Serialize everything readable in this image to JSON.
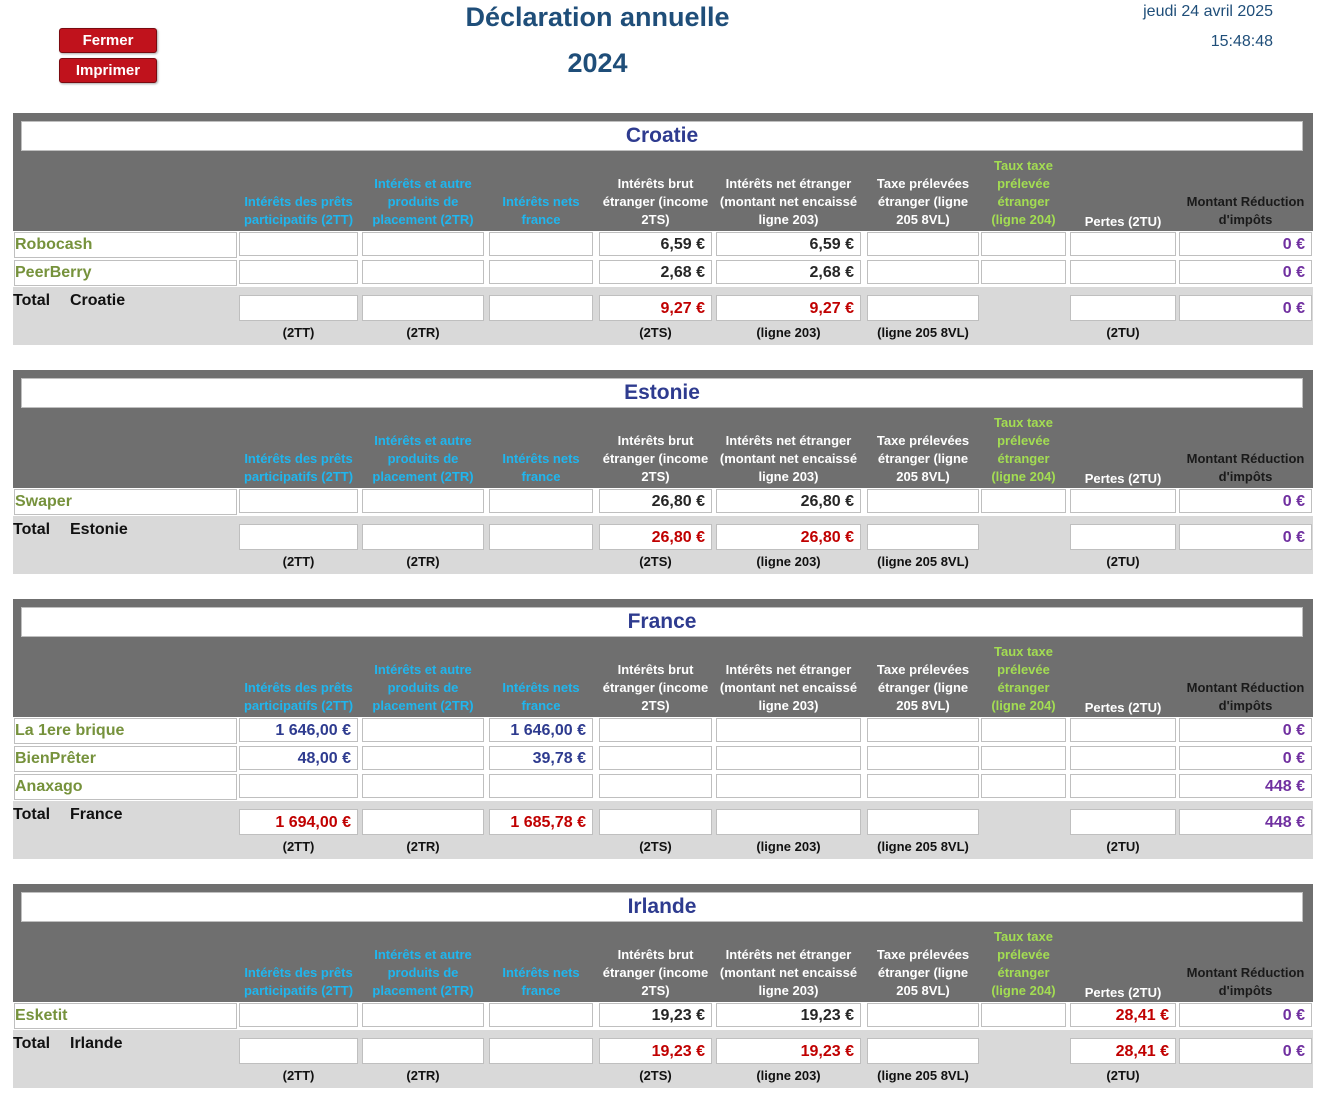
{
  "buttons": {
    "close": "Fermer",
    "print": "Imprimer"
  },
  "title": {
    "line1": "Déclaration  annuelle",
    "line2": "2024"
  },
  "datetime": {
    "date": "jeudi 24 avril 2025",
    "time": "15:48:48"
  },
  "columns": {
    "c1": "Intérêts des prêts participatifs (2TT)",
    "c2": "Intérêts et autre produits de placement (2TR)",
    "c3": "Intérêts nets france",
    "c4": "Intérêts brut étranger (income 2TS)",
    "c5": "Intérêts net étranger (montant net encaissé ligne 203)",
    "c6": "Taxe prélevées étranger (ligne 205 8VL)",
    "c7": "Taux taxe prélevée étranger (ligne 204)",
    "c8": "Pertes (2TU)",
    "c9": "Montant Réduction d'impôts"
  },
  "footer": {
    "f1": "(2TT)",
    "f2": "(2TR)",
    "f4": "(2TS)",
    "f5": "(ligne 203)",
    "f6": "(ligne 205 8VL)",
    "f8": "(2TU)"
  },
  "total_label": "Total",
  "sections": [
    {
      "country": "Croatie",
      "rows": [
        {
          "name": "Robocash",
          "c4": "6,59 €",
          "c5": "6,59 €",
          "c9": "0 €"
        },
        {
          "name": "PeerBerry",
          "c4": "2,68 €",
          "c5": "2,68 €",
          "c9": "0 €"
        }
      ],
      "total": {
        "c4": "9,27 €",
        "c5": "9,27 €",
        "c9": "0 €"
      }
    },
    {
      "country": "Estonie",
      "rows": [
        {
          "name": "Swaper",
          "c4": "26,80 €",
          "c5": "26,80 €",
          "c9": "0 €"
        }
      ],
      "total": {
        "c4": "26,80 €",
        "c5": "26,80 €",
        "c9": "0 €"
      }
    },
    {
      "country": "France",
      "rows": [
        {
          "name": "La 1ere brique",
          "c1": "1 646,00 €",
          "c3": "1 646,00 €",
          "c9": "0 €"
        },
        {
          "name": "BienPrêter",
          "c1": "48,00 €",
          "c3": "39,78 €",
          "c9": "0 €"
        },
        {
          "name": "Anaxago",
          "c9": "448 €"
        }
      ],
      "total": {
        "c1": "1 694,00 €",
        "c3": "1 685,78 €",
        "c9": "448 €"
      }
    },
    {
      "country": "Irlande",
      "rows": [
        {
          "name": "Esketit",
          "c4": "19,23 €",
          "c5": "19,23 €",
          "c8": "28,41 €",
          "c9": "0 €"
        }
      ],
      "total": {
        "c4": "19,23 €",
        "c5": "19,23 €",
        "c8": "28,41 €",
        "c9": "0 €"
      }
    }
  ]
}
